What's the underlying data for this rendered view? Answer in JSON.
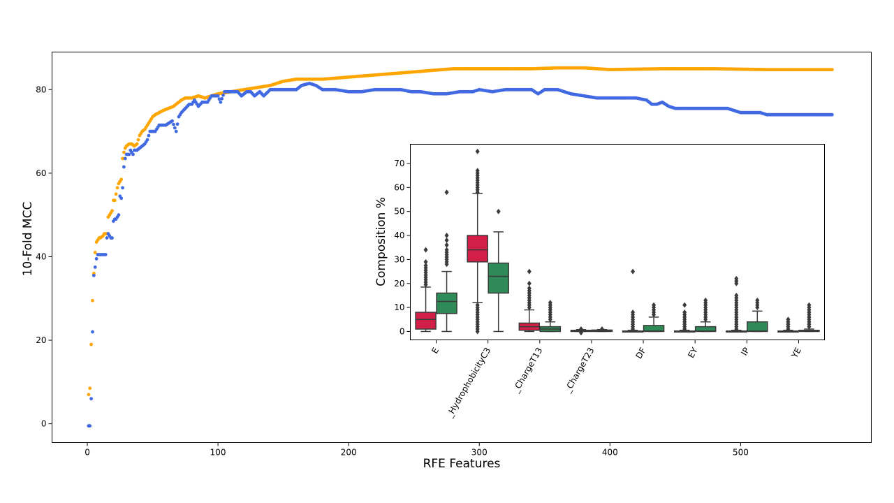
{
  "chart_data": [
    {
      "type": "scatter",
      "xlabel": "RFE Features",
      "ylabel": "10-Fold MCC",
      "xlim": [
        -27,
        600
      ],
      "ylim": [
        -4.5,
        89
      ],
      "xticks": [
        0,
        100,
        200,
        300,
        400,
        500
      ],
      "yticks": [
        0,
        20,
        40,
        60,
        80
      ],
      "grid": false,
      "legend": "none",
      "series": [
        {
          "color": "#ffa500",
          "points": [
            [
              1,
              7
            ],
            [
              2,
              8.5
            ],
            [
              3,
              19
            ],
            [
              4,
              29.5
            ],
            [
              5,
              36
            ],
            [
              6,
              41
            ],
            [
              7,
              43.5
            ],
            [
              8,
              44
            ],
            [
              9,
              44.5
            ],
            [
              10,
              44.5
            ],
            [
              12,
              45
            ],
            [
              13,
              45.5
            ],
            [
              15,
              45.5
            ],
            [
              16,
              49.5
            ],
            [
              18,
              50.5
            ],
            [
              19,
              51
            ],
            [
              20,
              53.5
            ],
            [
              21,
              53.5
            ],
            [
              22,
              55
            ],
            [
              23,
              56.5
            ],
            [
              24,
              57.5
            ],
            [
              25,
              58
            ],
            [
              26,
              58.5
            ],
            [
              27,
              63.5
            ],
            [
              28,
              65
            ],
            [
              29,
              66
            ],
            [
              30,
              66.5
            ],
            [
              32,
              67
            ],
            [
              34,
              67
            ],
            [
              36,
              66.5
            ],
            [
              38,
              67
            ],
            [
              40,
              69
            ],
            [
              42,
              70
            ],
            [
              44,
              70.5
            ],
            [
              46,
              71.5
            ],
            [
              48,
              72.5
            ],
            [
              50,
              73.5
            ],
            [
              52,
              74
            ],
            [
              55,
              74.5
            ],
            [
              58,
              75
            ],
            [
              62,
              75.5
            ],
            [
              66,
              76
            ],
            [
              70,
              77
            ],
            [
              72,
              77.5
            ],
            [
              75,
              78
            ],
            [
              80,
              78
            ],
            [
              85,
              78.5
            ],
            [
              90,
              78
            ],
            [
              95,
              78.5
            ],
            [
              100,
              79
            ],
            [
              110,
              79.5
            ],
            [
              120,
              80
            ],
            [
              130,
              80.5
            ],
            [
              140,
              81
            ],
            [
              150,
              82
            ],
            [
              160,
              82.5
            ],
            [
              180,
              82.5
            ],
            [
              200,
              83
            ],
            [
              220,
              83.5
            ],
            [
              240,
              84
            ],
            [
              260,
              84.5
            ],
            [
              280,
              85
            ],
            [
              300,
              85
            ],
            [
              340,
              85
            ],
            [
              360,
              85.2
            ],
            [
              380,
              85.2
            ],
            [
              400,
              84.8
            ],
            [
              440,
              85
            ],
            [
              480,
              85
            ],
            [
              520,
              84.8
            ],
            [
              570,
              84.8
            ]
          ]
        },
        {
          "color": "#4169e1",
          "points": [
            [
              1,
              -0.5
            ],
            [
              2,
              -0.5
            ],
            [
              3,
              6
            ],
            [
              4,
              22
            ],
            [
              5,
              35.5
            ],
            [
              6,
              37.5
            ],
            [
              7,
              39.5
            ],
            [
              8,
              40.5
            ],
            [
              10,
              40.5
            ],
            [
              12,
              40.5
            ],
            [
              14,
              40.5
            ],
            [
              15,
              44.5
            ],
            [
              16,
              45.5
            ],
            [
              18,
              44.5
            ],
            [
              19,
              44.5
            ],
            [
              20,
              48.5
            ],
            [
              21,
              49
            ],
            [
              22,
              49
            ],
            [
              24,
              50
            ],
            [
              25,
              54.5
            ],
            [
              26,
              54
            ],
            [
              27,
              56.5
            ],
            [
              28,
              61.5
            ],
            [
              29,
              63.5
            ],
            [
              30,
              64.5
            ],
            [
              32,
              64.5
            ],
            [
              33,
              65.5
            ],
            [
              35,
              64.5
            ],
            [
              36,
              65.5
            ],
            [
              38,
              65.5
            ],
            [
              40,
              66
            ],
            [
              42,
              66.5
            ],
            [
              44,
              67
            ],
            [
              46,
              68
            ],
            [
              48,
              70
            ],
            [
              50,
              70
            ],
            [
              52,
              70
            ],
            [
              55,
              71.5
            ],
            [
              60,
              71.5
            ],
            [
              65,
              72.5
            ],
            [
              68,
              70
            ],
            [
              70,
              73.5
            ],
            [
              72,
              74.5
            ],
            [
              75,
              75.5
            ],
            [
              78,
              76.5
            ],
            [
              80,
              76.5
            ],
            [
              82,
              77.5
            ],
            [
              85,
              76
            ],
            [
              88,
              77
            ],
            [
              92,
              77
            ],
            [
              95,
              78.5
            ],
            [
              100,
              78.5
            ],
            [
              102,
              77
            ],
            [
              105,
              79.5
            ],
            [
              110,
              79.5
            ],
            [
              115,
              79.5
            ],
            [
              118,
              78.5
            ],
            [
              122,
              79.5
            ],
            [
              125,
              79.5
            ],
            [
              128,
              78.5
            ],
            [
              132,
              79.5
            ],
            [
              135,
              78.5
            ],
            [
              140,
              80
            ],
            [
              150,
              80
            ],
            [
              160,
              80
            ],
            [
              164,
              81
            ],
            [
              170,
              81.5
            ],
            [
              175,
              81
            ],
            [
              180,
              80
            ],
            [
              190,
              80
            ],
            [
              200,
              79.5
            ],
            [
              210,
              79.5
            ],
            [
              220,
              80
            ],
            [
              230,
              80
            ],
            [
              240,
              80
            ],
            [
              248,
              79.5
            ],
            [
              255,
              79.5
            ],
            [
              265,
              79
            ],
            [
              275,
              79
            ],
            [
              285,
              79.5
            ],
            [
              295,
              79.5
            ],
            [
              300,
              80
            ],
            [
              310,
              79.5
            ],
            [
              320,
              80
            ],
            [
              330,
              80
            ],
            [
              340,
              80
            ],
            [
              345,
              79
            ],
            [
              350,
              80
            ],
            [
              360,
              80
            ],
            [
              365,
              79.5
            ],
            [
              370,
              79
            ],
            [
              380,
              78.5
            ],
            [
              390,
              78
            ],
            [
              400,
              78
            ],
            [
              410,
              78
            ],
            [
              420,
              78
            ],
            [
              428,
              77.5
            ],
            [
              432,
              76.5
            ],
            [
              436,
              76.5
            ],
            [
              440,
              77
            ],
            [
              445,
              76
            ],
            [
              450,
              75.5
            ],
            [
              470,
              75.5
            ],
            [
              490,
              75.5
            ],
            [
              500,
              74.5
            ],
            [
              515,
              74.5
            ],
            [
              520,
              74
            ],
            [
              540,
              74
            ],
            [
              570,
              74
            ]
          ]
        }
      ]
    },
    {
      "type": "box",
      "ylabel": "Composition %",
      "ylim": [
        -3.5,
        78
      ],
      "yticks": [
        0,
        10,
        20,
        30,
        40,
        50,
        60,
        70
      ],
      "categories": [
        "E",
        "_HydrophobicityC3",
        "_ChargeT13",
        "_ChargeT23",
        "DF",
        "EY",
        "IP",
        "YE"
      ],
      "series": [
        {
          "color": "#d21f47",
          "boxes": [
            {
              "whislo": 0,
              "q1": 1,
              "med": 5,
              "q3": 8,
              "whishi": 18.5,
              "fliers": [
                19.5,
                20.5,
                21.5,
                22.5,
                23.5,
                24.5,
                25.5,
                26.5,
                27.5,
                29,
                34
              ]
            },
            {
              "whislo": 12,
              "q1": 29,
              "med": 34,
              "q3": 40,
              "whishi": 57.5,
              "fliers": [
                0,
                1,
                2,
                3,
                4,
                5,
                6,
                7,
                8,
                9,
                10,
                11,
                58,
                59,
                60,
                61,
                62,
                63,
                64,
                65,
                66,
                67,
                75
              ]
            },
            {
              "whislo": 0,
              "q1": 0.5,
              "med": 2,
              "q3": 3.5,
              "whishi": 9,
              "fliers": [
                10,
                11,
                12,
                13,
                14,
                15,
                16,
                17,
                18,
                20,
                25
              ]
            },
            {
              "whislo": 0,
              "q1": 0,
              "med": 0.2,
              "q3": 0.5,
              "whishi": 0.8,
              "fliers": [
                -0.5,
                1
              ]
            },
            {
              "whislo": 0,
              "q1": 0,
              "med": 0,
              "q3": 0.2,
              "whishi": 0.5,
              "fliers": [
                1,
                2,
                3,
                4,
                5,
                6,
                7,
                8,
                25
              ]
            },
            {
              "whislo": 0,
              "q1": 0,
              "med": 0,
              "q3": 0.2,
              "whishi": 0.5,
              "fliers": [
                1,
                2,
                3,
                4,
                5,
                6,
                7,
                8,
                11
              ]
            },
            {
              "whislo": 0,
              "q1": 0,
              "med": 0,
              "q3": 0.2,
              "whishi": 0.5,
              "fliers": [
                1,
                2,
                3,
                4,
                5,
                6,
                7,
                8,
                9,
                10,
                11,
                12,
                13,
                14,
                15,
                20,
                21,
                22
              ]
            },
            {
              "whislo": 0,
              "q1": 0,
              "med": 0,
              "q3": 0.2,
              "whishi": 0.5,
              "fliers": [
                1,
                2,
                3,
                4,
                5
              ]
            }
          ]
        },
        {
          "color": "#2e8b57",
          "boxes": [
            {
              "whislo": 0,
              "q1": 7.5,
              "med": 12.5,
              "q3": 16,
              "whishi": 25,
              "fliers": [
                28,
                29,
                30,
                31,
                32,
                33,
                34,
                36,
                38,
                40,
                58
              ]
            },
            {
              "whislo": 0,
              "q1": 16,
              "med": 23,
              "q3": 28.5,
              "whishi": 41.5,
              "fliers": [
                50
              ]
            },
            {
              "whislo": 0,
              "q1": 0,
              "med": 1,
              "q3": 2,
              "whishi": 4,
              "fliers": [
                5,
                6,
                7,
                8,
                9,
                10,
                11,
                12
              ]
            },
            {
              "whislo": 0,
              "q1": 0,
              "med": 0.3,
              "q3": 0.6,
              "whishi": 0.8,
              "fliers": [
                1
              ]
            },
            {
              "whislo": 0,
              "q1": 0,
              "med": 0.2,
              "q3": 2.5,
              "whishi": 6,
              "fliers": [
                7,
                8,
                9,
                10,
                11
              ]
            },
            {
              "whislo": 0,
              "q1": 0,
              "med": 0.2,
              "q3": 2,
              "whishi": 4,
              "fliers": [
                5,
                6,
                7,
                8,
                9,
                10,
                11,
                12,
                13
              ]
            },
            {
              "whislo": 0,
              "q1": 0,
              "med": 0.2,
              "q3": 4,
              "whishi": 8.5,
              "fliers": [
                10,
                11,
                12,
                13
              ]
            },
            {
              "whislo": 0,
              "q1": 0,
              "med": 0.2,
              "q3": 0.5,
              "whishi": 1,
              "fliers": [
                2,
                3,
                4,
                5,
                6,
                7,
                8,
                9,
                10,
                11
              ]
            }
          ]
        }
      ]
    }
  ]
}
